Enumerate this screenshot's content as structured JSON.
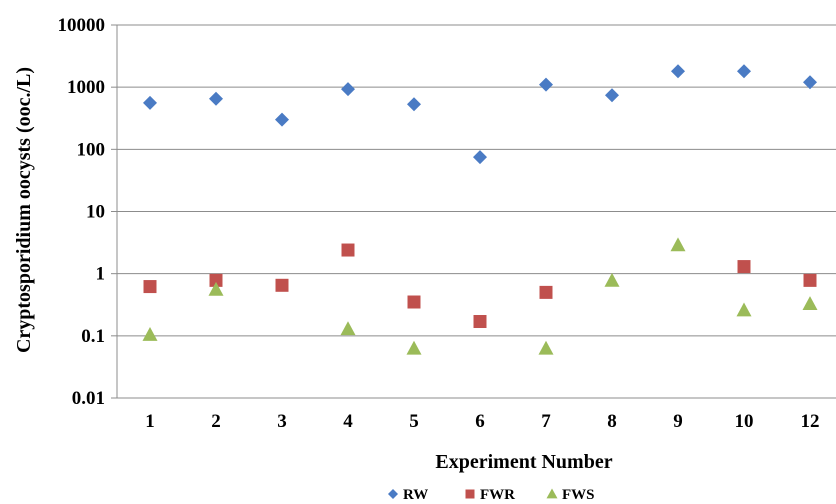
{
  "chart_data": {
    "type": "scatter",
    "title": "",
    "xlabel": "Experiment Number",
    "ylabel": "Cryptosporidium  oocysts (ooc./L)",
    "yscale": "log",
    "ylim": [
      0.01,
      10000
    ],
    "yticks": [
      "0.01",
      "0.1",
      "1",
      "10",
      "100",
      "1000",
      "10000"
    ],
    "categories": [
      "1",
      "2",
      "3",
      "4",
      "5",
      "6",
      "7",
      "8",
      "9",
      "10",
      "12"
    ],
    "grid": "horizontal",
    "legend_position": "bottom",
    "series": [
      {
        "name": "RW",
        "marker": "diamond",
        "color": "#4a7bc4",
        "values": [
          560,
          650,
          300,
          930,
          530,
          75,
          1100,
          740,
          1800,
          1800,
          1200
        ]
      },
      {
        "name": "FWR",
        "marker": "square",
        "color": "#c0504d",
        "values": [
          0.62,
          0.78,
          0.65,
          2.4,
          0.35,
          0.17,
          0.5,
          null,
          null,
          1.3,
          0.78
        ]
      },
      {
        "name": "FWS",
        "marker": "triangle",
        "color": "#9bbb59",
        "values": [
          0.105,
          0.56,
          null,
          0.13,
          0.063,
          null,
          0.063,
          0.78,
          2.9,
          0.26,
          0.33
        ]
      }
    ]
  }
}
